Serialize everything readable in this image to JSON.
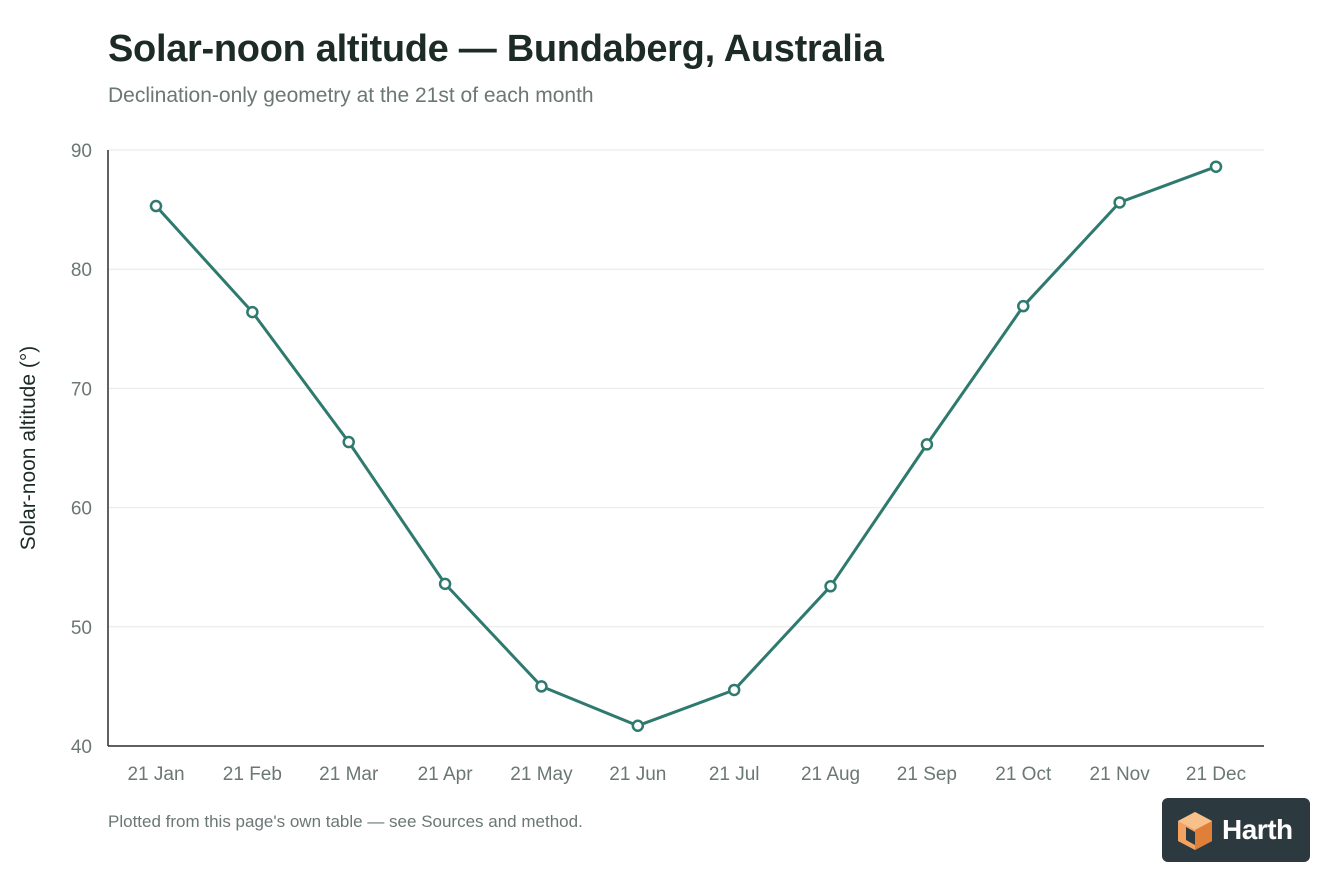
{
  "header": {
    "title": "Solar-noon altitude — Bundaberg, Australia",
    "subtitle": "Declination-only geometry at the 21st of each month"
  },
  "footer": {
    "note": "Plotted from this page's own table — see Sources and method.",
    "logo_text": "Harth"
  },
  "colors": {
    "line": "#2f7a6e",
    "grid": "#e6e9e8",
    "axis": "#2a2f2e",
    "text_muted": "#6b7775",
    "logo_bg": "#2c3a40",
    "logo_orange": "#f4a261"
  },
  "chart_data": {
    "type": "line",
    "title": "Solar-noon altitude — Bundaberg, Australia",
    "subtitle": "Declination-only geometry at the 21st of each month",
    "xlabel": "",
    "ylabel": "Solar-noon altitude (°)",
    "categories": [
      "21 Jan",
      "21 Feb",
      "21 Mar",
      "21 Apr",
      "21 May",
      "21 Jun",
      "21 Jul",
      "21 Aug",
      "21 Sep",
      "21 Oct",
      "21 Nov",
      "21 Dec"
    ],
    "series": [
      {
        "values": [
          85.3,
          76.4,
          65.5,
          53.6,
          45.0,
          41.7,
          44.7,
          53.4,
          65.3,
          76.9,
          85.6,
          88.6
        ]
      }
    ],
    "ylim": [
      40,
      90
    ],
    "yticks": [
      40,
      50,
      60,
      70,
      80,
      90
    ],
    "grid": true,
    "markers": "open-circle",
    "legend": "none"
  }
}
